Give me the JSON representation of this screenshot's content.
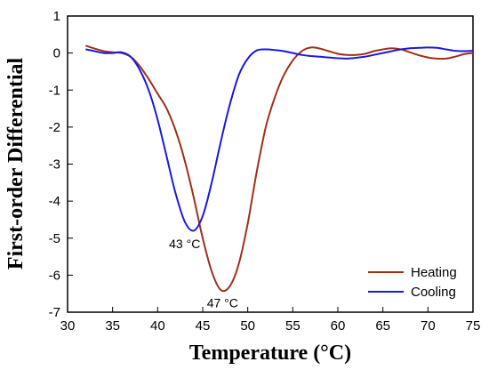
{
  "chart_data": {
    "type": "line",
    "xlabel": "Temperature (°C)",
    "ylabel": "First-order Differential",
    "xlim": [
      30,
      75
    ],
    "ylim": [
      -7,
      1
    ],
    "xticks": [
      30,
      35,
      40,
      45,
      50,
      55,
      60,
      65,
      70,
      75
    ],
    "yticks": [
      1,
      0,
      -1,
      -2,
      -3,
      -4,
      -5,
      -6,
      -7
    ],
    "grid": false,
    "legend_position": "bottom-right",
    "series": [
      {
        "name": "Heating",
        "color": "#a0301a",
        "x": [
          32,
          33,
          34,
          35,
          36,
          37,
          38,
          39,
          40,
          41,
          42,
          43,
          44,
          45,
          46,
          47,
          48,
          49,
          50,
          51,
          52,
          53,
          54,
          55,
          56,
          57,
          58,
          59,
          60,
          61,
          62,
          63,
          64,
          65,
          66,
          67,
          68,
          69,
          70,
          71,
          72,
          73,
          74,
          75
        ],
        "y": [
          0.2,
          0.12,
          0.05,
          0.02,
          0.0,
          -0.1,
          -0.35,
          -0.7,
          -1.1,
          -1.5,
          -2.1,
          -2.9,
          -3.9,
          -5.0,
          -5.9,
          -6.4,
          -6.3,
          -5.7,
          -4.6,
          -3.2,
          -2.0,
          -1.2,
          -0.6,
          -0.2,
          0.05,
          0.15,
          0.12,
          0.05,
          -0.02,
          -0.05,
          -0.05,
          -0.02,
          0.05,
          0.1,
          0.13,
          0.1,
          0.02,
          -0.06,
          -0.12,
          -0.15,
          -0.15,
          -0.1,
          -0.03,
          0.0
        ]
      },
      {
        "name": "Cooling",
        "color": "#1a1adc",
        "x": [
          32,
          33,
          34,
          35,
          36,
          37,
          38,
          39,
          40,
          41,
          42,
          43,
          44,
          45,
          46,
          47,
          48,
          49,
          50,
          51,
          52,
          53,
          54,
          55,
          56,
          57,
          58,
          59,
          60,
          61,
          62,
          63,
          64,
          65,
          66,
          67,
          68,
          69,
          70,
          71,
          72,
          73,
          74,
          75
        ],
        "y": [
          0.1,
          0.05,
          0.0,
          0.0,
          0.02,
          -0.1,
          -0.45,
          -1.0,
          -1.8,
          -2.8,
          -3.8,
          -4.55,
          -4.8,
          -4.4,
          -3.5,
          -2.4,
          -1.4,
          -0.6,
          -0.15,
          0.07,
          0.1,
          0.08,
          0.05,
          0.0,
          -0.05,
          -0.08,
          -0.1,
          -0.12,
          -0.14,
          -0.15,
          -0.13,
          -0.1,
          -0.05,
          0.0,
          0.05,
          0.1,
          0.13,
          0.14,
          0.15,
          0.14,
          0.1,
          0.06,
          0.05,
          0.06
        ]
      }
    ],
    "annotations": [
      {
        "text": "43 °C",
        "x": 43,
        "y": -5.15
      },
      {
        "text": "47 °C",
        "x": 47.2,
        "y": -6.75
      }
    ]
  }
}
